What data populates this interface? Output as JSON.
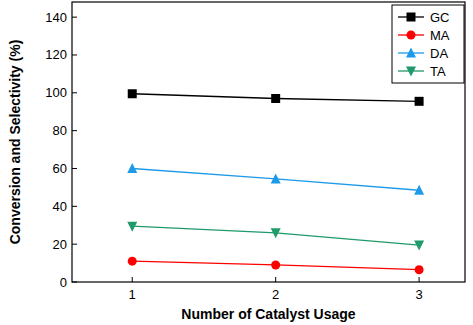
{
  "chart_data": {
    "type": "line",
    "x_label": "Number of Catalyst Usage",
    "y_label": "Conversion and Selectivity (%)",
    "x": [
      1,
      2,
      3
    ],
    "xlim": [
      0.58,
      3.32
    ],
    "xticks": [
      1,
      2,
      3
    ],
    "ylim": [
      0,
      148
    ],
    "yticks": [
      0,
      20,
      40,
      60,
      80,
      100,
      120,
      140
    ],
    "grid": false,
    "legend": "upper right",
    "series": [
      {
        "name": "GC",
        "color": "#000000",
        "marker": "square",
        "values": [
          99.5,
          97,
          95.5
        ]
      },
      {
        "name": "MA",
        "color": "#ff0000",
        "marker": "circle",
        "values": [
          11,
          9,
          6.5
        ]
      },
      {
        "name": "DA",
        "color": "#1e9be8",
        "marker": "triangle-up",
        "values": [
          60,
          54.5,
          48.5
        ]
      },
      {
        "name": "TA",
        "color": "#1f9a6a",
        "marker": "triangle-down",
        "values": [
          29.5,
          26,
          19.5
        ]
      }
    ]
  }
}
